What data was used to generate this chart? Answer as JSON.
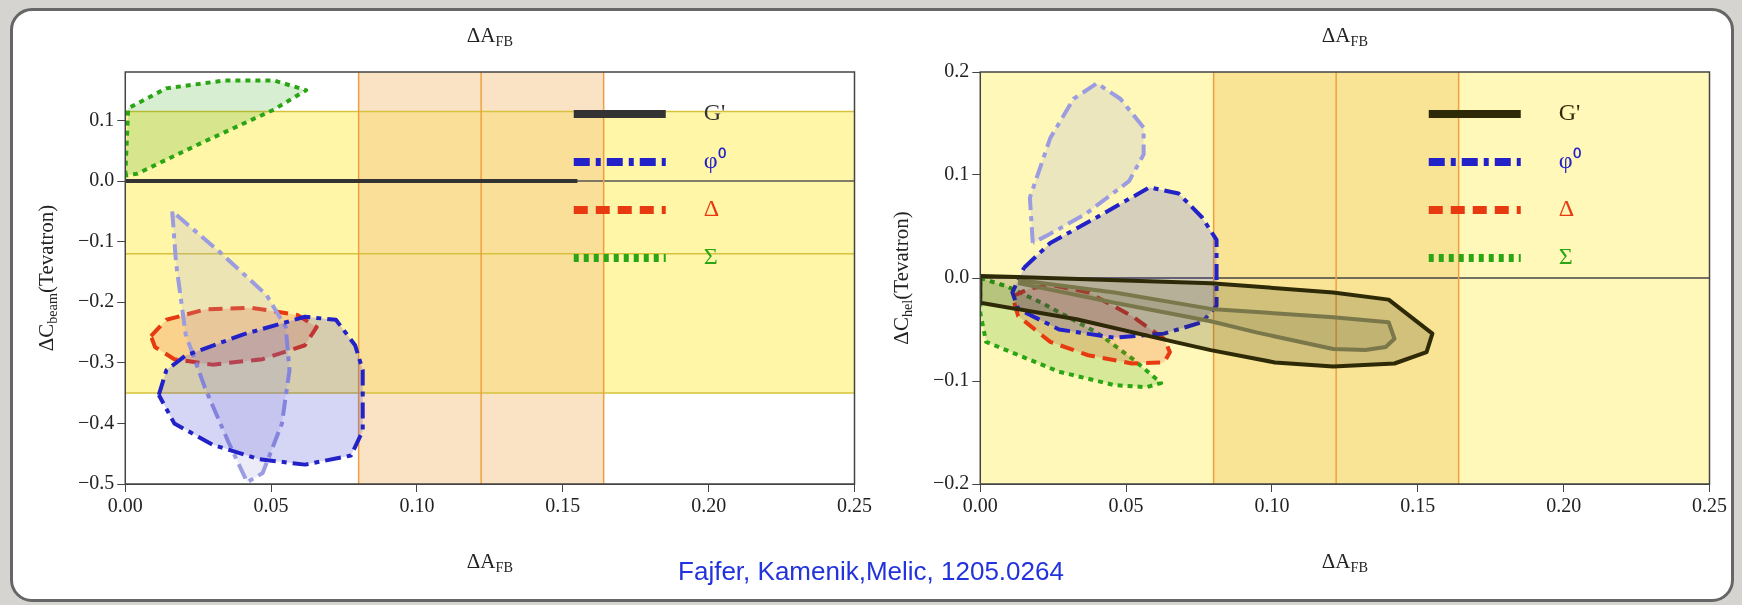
{
  "chart_data": [
    {
      "type": "area",
      "xlabel": "ΔA$_{FB}$",
      "x2label": "ΔA$_{FB}$",
      "ylabel": "ΔC$_{beam}$(Tevatron)",
      "xlim": [
        0,
        0.25
      ],
      "xticks": [
        {
          "value": 0,
          "label": "0.00"
        },
        {
          "value": 0.05,
          "label": "0.05"
        },
        {
          "value": 0.1,
          "label": "0.10"
        },
        {
          "value": 0.15,
          "label": "0.15"
        },
        {
          "value": 0.2,
          "label": "0.20"
        },
        {
          "value": 0.25,
          "label": "0.25"
        }
      ],
      "ylim": [
        -0.5,
        0.18
      ],
      "yticks": [
        {
          "value": -0.5,
          "label": "−0.5"
        },
        {
          "value": -0.4,
          "label": "−0.4"
        },
        {
          "value": -0.3,
          "label": "−0.3"
        },
        {
          "value": -0.2,
          "label": "−0.2"
        },
        {
          "value": -0.1,
          "label": "−0.1"
        },
        {
          "value": 0,
          "label": "0.0"
        },
        {
          "value": 0.1,
          "label": "0.1"
        }
      ],
      "grid": false,
      "legend": "top right",
      "bands": [
        {
          "axis": "y",
          "from": -0.35,
          "to": 0.115,
          "color": "#fff6a8"
        },
        {
          "axis": "x",
          "from": 0.08,
          "to": 0.164,
          "color": "#f6c88a"
        }
      ],
      "ref_lines": [
        {
          "axis": "y",
          "value": 0.115,
          "color": "#d6c23c"
        },
        {
          "axis": "y",
          "value": -0.12,
          "color": "#d6c23c"
        },
        {
          "axis": "y",
          "value": -0.35,
          "color": "#d6c23c"
        },
        {
          "axis": "y",
          "value": 0,
          "color": "#555555"
        },
        {
          "axis": "x",
          "value": 0.08,
          "color": "#eea040"
        },
        {
          "axis": "x",
          "value": 0.122,
          "color": "#eea040"
        },
        {
          "axis": "x",
          "value": 0.164,
          "color": "#eea040"
        }
      ],
      "annotations": [
        "Fajfer, Kamenik,Melic, 1205.0264"
      ],
      "series": [
        {
          "name": "G'",
          "type": "line",
          "color": "#333333",
          "line_style": "solid",
          "x": [
            0,
            0.155
          ],
          "values": [
            0,
            0
          ]
        },
        {
          "name": "φ⁰",
          "color": "#2222c8",
          "line_style": "dashdot",
          "x": [
            0.0115,
            0.0141,
            0.0207,
            0.0405,
            0.0616,
            0.0722,
            0.0788,
            0.0814,
            0.0814,
            0.0774,
            0.0616,
            0.0458,
            0.0299,
            0.0168,
            0.0115
          ],
          "values": [
            -0.353,
            -0.312,
            -0.288,
            -0.253,
            -0.224,
            -0.229,
            -0.271,
            -0.312,
            -0.412,
            -0.453,
            -0.468,
            -0.459,
            -0.435,
            -0.4,
            -0.353
          ]
        },
        {
          "color": "#9c9ce0",
          "line_style": "dashdot",
          "x": [
            0.0161,
            0.0174,
            0.0207,
            0.0273,
            0.0352,
            0.0418,
            0.0471,
            0.0537,
            0.0563,
            0.055,
            0.0484,
            0.0326,
            0.0161
          ],
          "values": [
            -0.05,
            -0.135,
            -0.253,
            -0.341,
            -0.429,
            -0.497,
            -0.482,
            -0.4,
            -0.312,
            -0.241,
            -0.188,
            -0.118,
            -0.05
          ]
        },
        {
          "name": "Δ",
          "color": "#e83a10",
          "line_style": "dashed",
          "x": [
            0.0088,
            0.0141,
            0.0273,
            0.0431,
            0.059,
            0.0656,
            0.0616,
            0.0471,
            0.0299,
            0.0168,
            0.0102,
            0.0088
          ],
          "values": [
            -0.256,
            -0.229,
            -0.212,
            -0.209,
            -0.221,
            -0.241,
            -0.271,
            -0.294,
            -0.303,
            -0.294,
            -0.274,
            -0.256
          ]
        },
        {
          "name": "Σ",
          "color": "#2aa614",
          "line_style": "dotted",
          "x": [
            0,
            0.001,
            0.014,
            0.034,
            0.051,
            0.062,
            0.051,
            0.027,
            0.004,
            0
          ],
          "values": [
            0.009,
            0.12,
            0.153,
            0.166,
            0.166,
            0.15,
            0.118,
            0.065,
            0.012,
            0.009
          ]
        }
      ]
    },
    {
      "type": "area",
      "xlabel": "ΔA$_{FB}$",
      "x2label": "ΔA$_{FB}$",
      "ylabel": "ΔC$_{hel}$(Tevatron)",
      "xlim": [
        0,
        0.25
      ],
      "xticks": [
        {
          "value": 0,
          "label": "0.00"
        },
        {
          "value": 0.05,
          "label": "0.05"
        },
        {
          "value": 0.1,
          "label": "0.10"
        },
        {
          "value": 0.15,
          "label": "0.15"
        },
        {
          "value": 0.2,
          "label": "0.20"
        },
        {
          "value": 0.25,
          "label": "0.25"
        }
      ],
      "ylim": [
        -0.2,
        0.2
      ],
      "yticks": [
        {
          "value": -0.2,
          "label": "−0.2"
        },
        {
          "value": -0.1,
          "label": "−0.1"
        },
        {
          "value": 0,
          "label": "0.0"
        },
        {
          "value": 0.1,
          "label": "0.1"
        },
        {
          "value": 0.2,
          "label": "0.2"
        }
      ],
      "grid": false,
      "legend": "top right",
      "bands": [
        {
          "axis": "y",
          "from": -0.2,
          "to": 0.2,
          "color": "#fff8b8"
        },
        {
          "axis": "x",
          "from": 0.08,
          "to": 0.164,
          "color": "#f2d070"
        }
      ],
      "ref_lines": [
        {
          "axis": "y",
          "value": 0,
          "color": "#444444"
        },
        {
          "axis": "x",
          "value": 0.08,
          "color": "#eea040"
        },
        {
          "axis": "x",
          "value": 0.122,
          "color": "#eea040"
        },
        {
          "axis": "x",
          "value": 0.164,
          "color": "#eea040"
        }
      ],
      "series": [
        {
          "name": "G'",
          "color": "#2e2a08",
          "line_style": "solid",
          "x": [
            0,
            0.079,
            0.121,
            0.14,
            0.155,
            0.153,
            0.142,
            0.121,
            0.101,
            0.079,
            0.065,
            0.033,
            0,
            0
          ],
          "values": [
            0.002,
            -0.005,
            -0.014,
            -0.021,
            -0.054,
            -0.072,
            -0.083,
            -0.086,
            -0.082,
            -0.07,
            -0.061,
            -0.04,
            -0.024,
            0.002
          ]
        },
        {
          "color": "#8c8a5a",
          "line_style": "solid",
          "x": [
            0.013,
            0.046,
            0.079,
            0.121,
            0.14,
            0.142,
            0.139,
            0.132,
            0.121,
            0.095,
            0.079,
            0.046,
            0.013
          ],
          "values": [
            -0.002,
            -0.014,
            -0.03,
            -0.038,
            -0.043,
            -0.059,
            -0.067,
            -0.07,
            -0.069,
            -0.053,
            -0.042,
            -0.024,
            -0.005
          ]
        },
        {
          "name": "φ⁰",
          "color": "#2222c8",
          "line_style": "dashdot",
          "x": [
            0.015,
            0.024,
            0.04,
            0.058,
            0.068,
            0.076,
            0.081,
            0.081,
            0.076,
            0.063,
            0.046,
            0.027,
            0.013,
            0.011,
            0.015
          ],
          "values": [
            0.01,
            0.034,
            0.059,
            0.088,
            0.082,
            0.059,
            0.037,
            -0.027,
            -0.043,
            -0.054,
            -0.058,
            -0.05,
            -0.03,
            -0.014,
            0.01
          ]
        },
        {
          "color": "#9c9ce0",
          "line_style": "dashdot",
          "x": [
            0.018,
            0.017,
            0.024,
            0.032,
            0.04,
            0.048,
            0.056,
            0.056,
            0.051,
            0.036,
            0.024,
            0.018
          ],
          "values": [
            0.034,
            0.078,
            0.136,
            0.174,
            0.189,
            0.174,
            0.146,
            0.12,
            0.094,
            0.062,
            0.043,
            0.034
          ]
        },
        {
          "name": "Δ",
          "color": "#e83a10",
          "line_style": "dashed",
          "x": [
            0.011,
            0.017,
            0.025,
            0.037,
            0.052,
            0.063,
            0.065,
            0.063,
            0.052,
            0.037,
            0.024,
            0.013,
            0.011
          ],
          "values": [
            -0.018,
            -0.01,
            -0.007,
            -0.014,
            -0.037,
            -0.059,
            -0.072,
            -0.082,
            -0.083,
            -0.075,
            -0.062,
            -0.037,
            -0.018
          ]
        },
        {
          "name": "Σ",
          "color": "#2aa614",
          "line_style": "dotted",
          "x": [
            0,
            0.009,
            0.021,
            0.04,
            0.052,
            0.062,
            0.057,
            0.046,
            0.027,
            0.002,
            0,
            0
          ],
          "values": [
            0,
            -0.008,
            -0.024,
            -0.053,
            -0.078,
            -0.102,
            -0.106,
            -0.104,
            -0.091,
            -0.062,
            -0.034,
            0
          ]
        }
      ]
    }
  ]
}
